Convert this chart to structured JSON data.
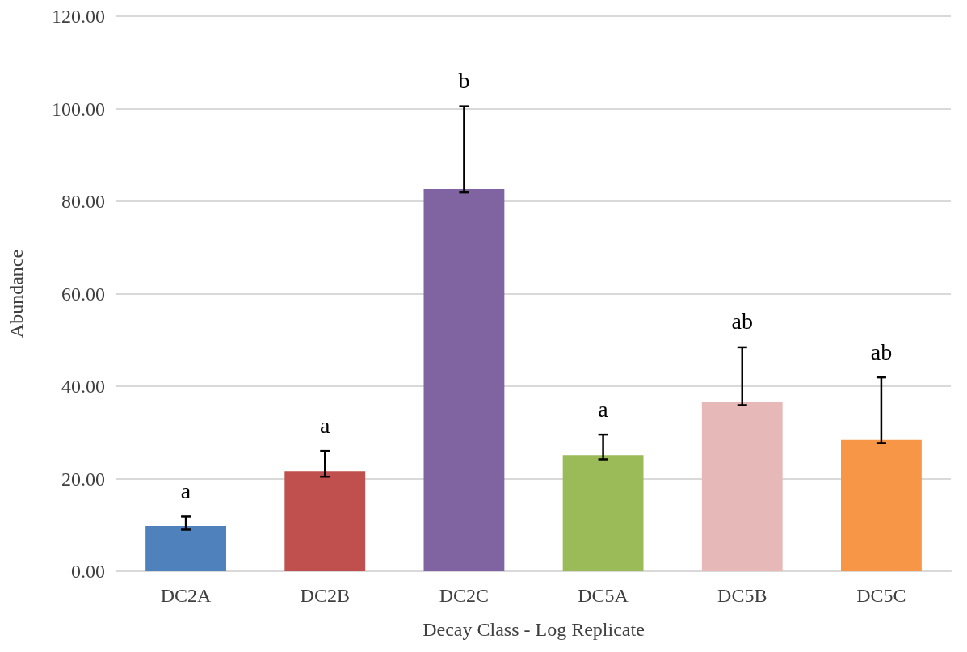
{
  "chart_data": {
    "type": "bar",
    "xlabel": "Decay Class - Log Replicate",
    "ylabel": "Abundance",
    "categories": [
      "DC2A",
      "DC2B",
      "DC2C",
      "DC5A",
      "DC5B",
      "DC5C"
    ],
    "values": [
      9.8,
      21.6,
      82.6,
      25.1,
      36.7,
      28.5
    ],
    "colors": [
      "#4f81bd",
      "#c0504d",
      "#8064a2",
      "#9bbb59",
      "#e6b9b8",
      "#f79646"
    ],
    "errors": [
      [
        9.0,
        11.8
      ],
      [
        20.4,
        26.0
      ],
      [
        81.9,
        100.5
      ],
      [
        24.2,
        29.5
      ],
      [
        35.9,
        48.4
      ],
      [
        27.7,
        41.9
      ]
    ],
    "ylim": [
      0,
      120
    ],
    "yticks": [
      {
        "value": 0,
        "label": "0.00"
      },
      {
        "value": 20,
        "label": "20.00"
      },
      {
        "value": 40,
        "label": "40.00"
      },
      {
        "value": 60,
        "label": "60.00"
      },
      {
        "value": 80,
        "label": "80.00"
      },
      {
        "value": 100,
        "label": "100.00"
      },
      {
        "value": 120,
        "label": "120.00"
      }
    ],
    "grid": "y",
    "annotations": [
      "a",
      "a",
      "b",
      "a",
      "ab",
      "ab"
    ]
  }
}
